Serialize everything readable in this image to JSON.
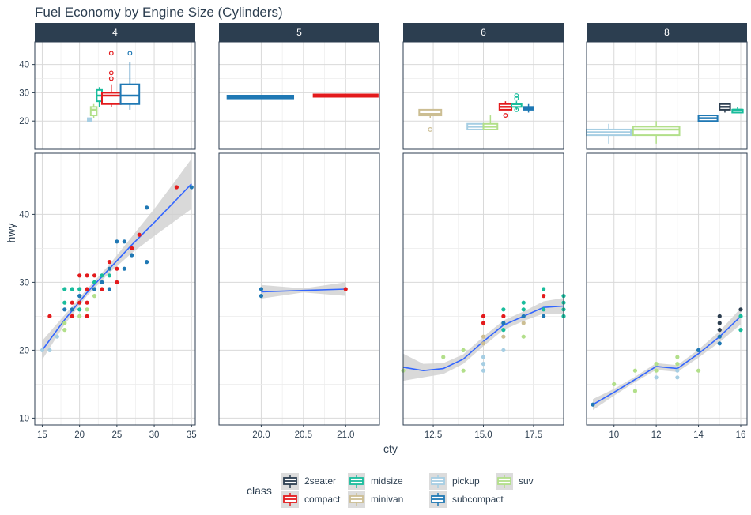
{
  "chart_data": {
    "type": "scatter",
    "title": "Fuel Economy by Engine Size (Cylinders)",
    "xlabel": "cty",
    "ylabel": "hwy",
    "grid": true,
    "legend": {
      "title": "class",
      "position": "bottom",
      "entries": [
        {
          "name": "2seater",
          "color": "#2c3e50"
        },
        {
          "name": "compact",
          "color": "#e31a1c"
        },
        {
          "name": "midsize",
          "color": "#18bc9c"
        },
        {
          "name": "minivan",
          "color": "#ccbe93"
        },
        {
          "name": "pickup",
          "color": "#a6cee3"
        },
        {
          "name": "subcompact",
          "color": "#1f78b4"
        },
        {
          "name": "suv",
          "color": "#b2df8a"
        }
      ]
    },
    "top_ylim": [
      10,
      48
    ],
    "top_yticks": [
      20,
      30,
      40
    ],
    "ylim": [
      9,
      49
    ],
    "yticks": [
      10,
      20,
      30,
      40
    ],
    "facets": [
      {
        "label": "4",
        "xlim": [
          14.0,
          35.5
        ],
        "xticks": [
          15,
          20,
          25,
          30,
          35
        ],
        "boxes": [
          {
            "class": "pickup",
            "x0": 21.1,
            "x1": 21.6,
            "q1": 20,
            "med": 20.5,
            "q3": 21,
            "wlo": 20,
            "whi": 21,
            "outliers": []
          },
          {
            "class": "suv",
            "x0": 21.5,
            "x1": 22.3,
            "q1": 22,
            "med": 24,
            "q3": 25,
            "wlo": 21,
            "whi": 26,
            "outliers": []
          },
          {
            "class": "midsize",
            "x0": 22.3,
            "x1": 23.0,
            "q1": 27,
            "med": 29,
            "q3": 31,
            "wlo": 25,
            "whi": 32,
            "outliers": []
          },
          {
            "class": "compact",
            "x0": 23.0,
            "x1": 25.5,
            "q1": 26,
            "med": 29,
            "q3": 30,
            "wlo": 25,
            "whi": 33,
            "outliers": [
              35,
              37,
              44
            ]
          },
          {
            "class": "subcompact",
            "x0": 25.5,
            "x1": 28.0,
            "q1": 26,
            "med": 29,
            "q3": 33,
            "wlo": 24,
            "whi": 41,
            "outliers": [
              44
            ]
          }
        ],
        "smooth": {
          "x": [
            15,
            18,
            21,
            24,
            27,
            30,
            33,
            35
          ],
          "y": [
            20,
            24.5,
            28.5,
            32,
            35.5,
            38.8,
            42.2,
            44.5
          ],
          "lo": [
            18.6,
            23.8,
            28.0,
            31.4,
            34.3,
            36.8,
            39.2,
            40.8
          ],
          "hi": [
            21.4,
            25.2,
            29.0,
            32.6,
            36.7,
            40.8,
            45.2,
            48.2
          ]
        },
        "points": [
          {
            "x": 15,
            "y": 20,
            "class": "pickup"
          },
          {
            "x": 16,
            "y": 25,
            "class": "compact"
          },
          {
            "x": 16,
            "y": 20,
            "class": "pickup"
          },
          {
            "x": 17,
            "y": 22,
            "class": "pickup"
          },
          {
            "x": 18,
            "y": 29,
            "class": "midsize"
          },
          {
            "x": 18,
            "y": 27,
            "class": "midsize"
          },
          {
            "x": 18,
            "y": 26,
            "class": "subcompact"
          },
          {
            "x": 18,
            "y": 24,
            "class": "suv"
          },
          {
            "x": 18,
            "y": 23,
            "class": "suv"
          },
          {
            "x": 19,
            "y": 29,
            "class": "midsize"
          },
          {
            "x": 19,
            "y": 27,
            "class": "compact"
          },
          {
            "x": 19,
            "y": 26,
            "class": "subcompact"
          },
          {
            "x": 19,
            "y": 25,
            "class": "compact"
          },
          {
            "x": 20,
            "y": 31,
            "class": "compact"
          },
          {
            "x": 20,
            "y": 29,
            "class": "midsize"
          },
          {
            "x": 20,
            "y": 28,
            "class": "subcompact"
          },
          {
            "x": 20,
            "y": 27,
            "class": "compact"
          },
          {
            "x": 20,
            "y": 26,
            "class": "midsize"
          },
          {
            "x": 20,
            "y": 25,
            "class": "suv"
          },
          {
            "x": 21,
            "y": 31,
            "class": "compact"
          },
          {
            "x": 21,
            "y": 29,
            "class": "compact"
          },
          {
            "x": 21,
            "y": 27,
            "class": "compact"
          },
          {
            "x": 21,
            "y": 26,
            "class": "suv"
          },
          {
            "x": 21,
            "y": 25,
            "class": "compact"
          },
          {
            "x": 22,
            "y": 31,
            "class": "compact"
          },
          {
            "x": 22,
            "y": 30,
            "class": "midsize"
          },
          {
            "x": 22,
            "y": 29,
            "class": "subcompact"
          },
          {
            "x": 22,
            "y": 28,
            "class": "suv"
          },
          {
            "x": 23,
            "y": 31,
            "class": "midsize"
          },
          {
            "x": 23,
            "y": 29,
            "class": "compact"
          },
          {
            "x": 23,
            "y": 30,
            "class": "subcompact"
          },
          {
            "x": 24,
            "y": 32,
            "class": "subcompact"
          },
          {
            "x": 24,
            "y": 31,
            "class": "midsize"
          },
          {
            "x": 24,
            "y": 29,
            "class": "subcompact"
          },
          {
            "x": 24,
            "y": 33,
            "class": "compact"
          },
          {
            "x": 25,
            "y": 36,
            "class": "subcompact"
          },
          {
            "x": 25,
            "y": 32,
            "class": "compact"
          },
          {
            "x": 25,
            "y": 30,
            "class": "compact"
          },
          {
            "x": 26,
            "y": 36,
            "class": "subcompact"
          },
          {
            "x": 26,
            "y": 32,
            "class": "subcompact"
          },
          {
            "x": 27,
            "y": 35,
            "class": "compact"
          },
          {
            "x": 27,
            "y": 34,
            "class": "subcompact"
          },
          {
            "x": 28,
            "y": 37,
            "class": "compact"
          },
          {
            "x": 29,
            "y": 41,
            "class": "subcompact"
          },
          {
            "x": 29,
            "y": 33,
            "class": "subcompact"
          },
          {
            "x": 33,
            "y": 44,
            "class": "compact"
          },
          {
            "x": 35,
            "y": 44,
            "class": "subcompact"
          }
        ]
      },
      {
        "label": "5",
        "xlim": [
          19.5,
          21.4
        ],
        "xticks": [
          20.0,
          20.5,
          21.0
        ],
        "boxes": [
          {
            "class": "subcompact",
            "x0": 19.6,
            "x1": 20.38,
            "q1": 28,
            "med": 28.5,
            "q3": 29,
            "wlo": 28,
            "whi": 29,
            "outliers": []
          },
          {
            "class": "compact",
            "x0": 20.62,
            "x1": 21.38,
            "q1": 29,
            "med": 29,
            "q3": 29,
            "wlo": 29,
            "whi": 29,
            "outliers": []
          }
        ],
        "smooth": {
          "x": [
            20,
            20.5,
            21
          ],
          "y": [
            28.6,
            28.8,
            29
          ],
          "lo": [
            27.6,
            28.5,
            28.0
          ],
          "hi": [
            29.6,
            29.1,
            30.0
          ]
        },
        "points": [
          {
            "x": 20,
            "y": 28,
            "class": "subcompact"
          },
          {
            "x": 20,
            "y": 29,
            "class": "subcompact"
          },
          {
            "x": 21,
            "y": 29,
            "class": "compact"
          }
        ]
      },
      {
        "label": "6",
        "xlim": [
          11.0,
          19.0
        ],
        "xticks": [
          12.5,
          15.0,
          17.5
        ],
        "boxes": [
          {
            "class": "minivan",
            "x0": 11.8,
            "x1": 12.9,
            "q1": 22,
            "med": 22.5,
            "q3": 24,
            "wlo": 21,
            "whi": 24,
            "outliers": [
              17
            ]
          },
          {
            "class": "pickup",
            "x0": 14.2,
            "x1": 15.0,
            "q1": 17,
            "med": 18,
            "q3": 19,
            "wlo": 17,
            "whi": 19,
            "outliers": []
          },
          {
            "class": "suv",
            "x0": 15.0,
            "x1": 15.7,
            "q1": 17,
            "med": 18,
            "q3": 19,
            "wlo": 17,
            "whi": 22,
            "outliers": []
          },
          {
            "class": "compact",
            "x0": 15.8,
            "x1": 16.4,
            "q1": 24,
            "med": 25,
            "q3": 26,
            "wlo": 24,
            "whi": 27,
            "outliers": [
              22
            ]
          },
          {
            "class": "midsize",
            "x0": 16.4,
            "x1": 16.9,
            "q1": 25,
            "med": 26,
            "q3": 26,
            "wlo": 24,
            "whi": 27,
            "outliers": [
              24,
              28,
              29
            ]
          },
          {
            "class": "subcompact",
            "x0": 17.0,
            "x1": 17.5,
            "q1": 24,
            "med": 24.5,
            "q3": 25,
            "wlo": 23,
            "whi": 26,
            "outliers": []
          }
        ],
        "smooth": {
          "x": [
            11,
            12,
            13,
            14,
            15,
            16,
            17,
            18,
            19
          ],
          "y": [
            17.5,
            17,
            17.3,
            18.7,
            21.3,
            23.7,
            25.0,
            26.3,
            26.5
          ],
          "lo": [
            15.5,
            16.0,
            16.5,
            18.0,
            20.6,
            23.0,
            24.3,
            25.4,
            25.3
          ],
          "hi": [
            19.5,
            18.0,
            18.1,
            19.4,
            22.0,
            24.4,
            25.7,
            27.2,
            27.7
          ]
        },
        "points": [
          {
            "x": 11,
            "y": 17,
            "class": "suv"
          },
          {
            "x": 13,
            "y": 19,
            "class": "suv"
          },
          {
            "x": 14,
            "y": 17,
            "class": "suv"
          },
          {
            "x": 14,
            "y": 20,
            "class": "suv"
          },
          {
            "x": 15,
            "y": 25,
            "class": "compact"
          },
          {
            "x": 15,
            "y": 24,
            "class": "compact"
          },
          {
            "x": 15,
            "y": 22,
            "class": "minivan"
          },
          {
            "x": 15,
            "y": 21,
            "class": "minivan"
          },
          {
            "x": 15,
            "y": 19,
            "class": "pickup"
          },
          {
            "x": 15,
            "y": 18,
            "class": "pickup"
          },
          {
            "x": 15,
            "y": 17,
            "class": "pickup"
          },
          {
            "x": 16,
            "y": 26,
            "class": "midsize"
          },
          {
            "x": 16,
            "y": 25,
            "class": "compact"
          },
          {
            "x": 16,
            "y": 24,
            "class": "subcompact"
          },
          {
            "x": 16,
            "y": 23,
            "class": "midsize"
          },
          {
            "x": 16,
            "y": 22,
            "class": "minivan"
          },
          {
            "x": 16,
            "y": 20,
            "class": "pickup"
          },
          {
            "x": 17,
            "y": 27,
            "class": "midsize"
          },
          {
            "x": 17,
            "y": 26,
            "class": "midsize"
          },
          {
            "x": 17,
            "y": 25,
            "class": "subcompact"
          },
          {
            "x": 17,
            "y": 24,
            "class": "minivan"
          },
          {
            "x": 17,
            "y": 22,
            "class": "suv"
          },
          {
            "x": 18,
            "y": 29,
            "class": "midsize"
          },
          {
            "x": 18,
            "y": 28,
            "class": "compact"
          },
          {
            "x": 18,
            "y": 26,
            "class": "midsize"
          },
          {
            "x": 18,
            "y": 25,
            "class": "subcompact"
          },
          {
            "x": 19,
            "y": 28,
            "class": "midsize"
          },
          {
            "x": 19,
            "y": 27,
            "class": "midsize"
          },
          {
            "x": 19,
            "y": 26,
            "class": "midsize"
          },
          {
            "x": 19,
            "y": 25,
            "class": "midsize"
          }
        ]
      },
      {
        "label": "8",
        "xlim": [
          8.7,
          16.3
        ],
        "xticks": [
          10,
          12,
          14,
          16
        ],
        "boxes": [
          {
            "class": "pickup",
            "x0": 8.7,
            "x1": 10.8,
            "q1": 15,
            "med": 16,
            "q3": 17,
            "wlo": 12,
            "whi": 19,
            "outliers": []
          },
          {
            "class": "suv",
            "x0": 10.9,
            "x1": 13.1,
            "q1": 15,
            "med": 17,
            "q3": 18,
            "wlo": 12,
            "whi": 20,
            "outliers": []
          },
          {
            "class": "subcompact",
            "x0": 14.0,
            "x1": 14.9,
            "q1": 20,
            "med": 21,
            "q3": 22,
            "wlo": 20,
            "whi": 22,
            "outliers": []
          },
          {
            "class": "2seater",
            "x0": 15.0,
            "x1": 15.5,
            "q1": 24,
            "med": 25,
            "q3": 26,
            "wlo": 23,
            "whi": 26,
            "outliers": []
          },
          {
            "class": "midsize",
            "x0": 15.6,
            "x1": 16.1,
            "q1": 23,
            "med": 24,
            "q3": 24,
            "wlo": 23,
            "whi": 25,
            "outliers": []
          }
        ],
        "smooth": {
          "x": [
            9,
            10,
            11,
            12,
            13,
            14,
            15,
            16
          ],
          "y": [
            12,
            13.8,
            15.7,
            17.6,
            17.3,
            19.5,
            22.0,
            25.0
          ],
          "lo": [
            11.2,
            13.3,
            15.3,
            17.1,
            16.8,
            18.9,
            21.2,
            23.8
          ],
          "hi": [
            12.8,
            14.3,
            16.1,
            18.1,
            17.8,
            20.1,
            22.8,
            26.2
          ]
        },
        "points": [
          {
            "x": 9,
            "y": 12,
            "class": "subcompact"
          },
          {
            "x": 10,
            "y": 15,
            "class": "suv"
          },
          {
            "x": 11,
            "y": 17,
            "class": "suv"
          },
          {
            "x": 11,
            "y": 14,
            "class": "suv"
          },
          {
            "x": 12,
            "y": 18,
            "class": "suv"
          },
          {
            "x": 12,
            "y": 17,
            "class": "suv"
          },
          {
            "x": 12,
            "y": 16,
            "class": "pickup"
          },
          {
            "x": 13,
            "y": 19,
            "class": "suv"
          },
          {
            "x": 13,
            "y": 18,
            "class": "suv"
          },
          {
            "x": 13,
            "y": 17,
            "class": "pickup"
          },
          {
            "x": 13,
            "y": 16,
            "class": "pickup"
          },
          {
            "x": 14,
            "y": 20,
            "class": "subcompact"
          },
          {
            "x": 14,
            "y": 17,
            "class": "suv"
          },
          {
            "x": 15,
            "y": 25,
            "class": "2seater"
          },
          {
            "x": 15,
            "y": 24,
            "class": "2seater"
          },
          {
            "x": 15,
            "y": 23,
            "class": "2seater"
          },
          {
            "x": 15,
            "y": 22,
            "class": "subcompact"
          },
          {
            "x": 15,
            "y": 21,
            "class": "subcompact"
          },
          {
            "x": 16,
            "y": 26,
            "class": "2seater"
          },
          {
            "x": 16,
            "y": 25,
            "class": "midsize"
          },
          {
            "x": 16,
            "y": 23,
            "class": "midsize"
          }
        ]
      }
    ]
  }
}
